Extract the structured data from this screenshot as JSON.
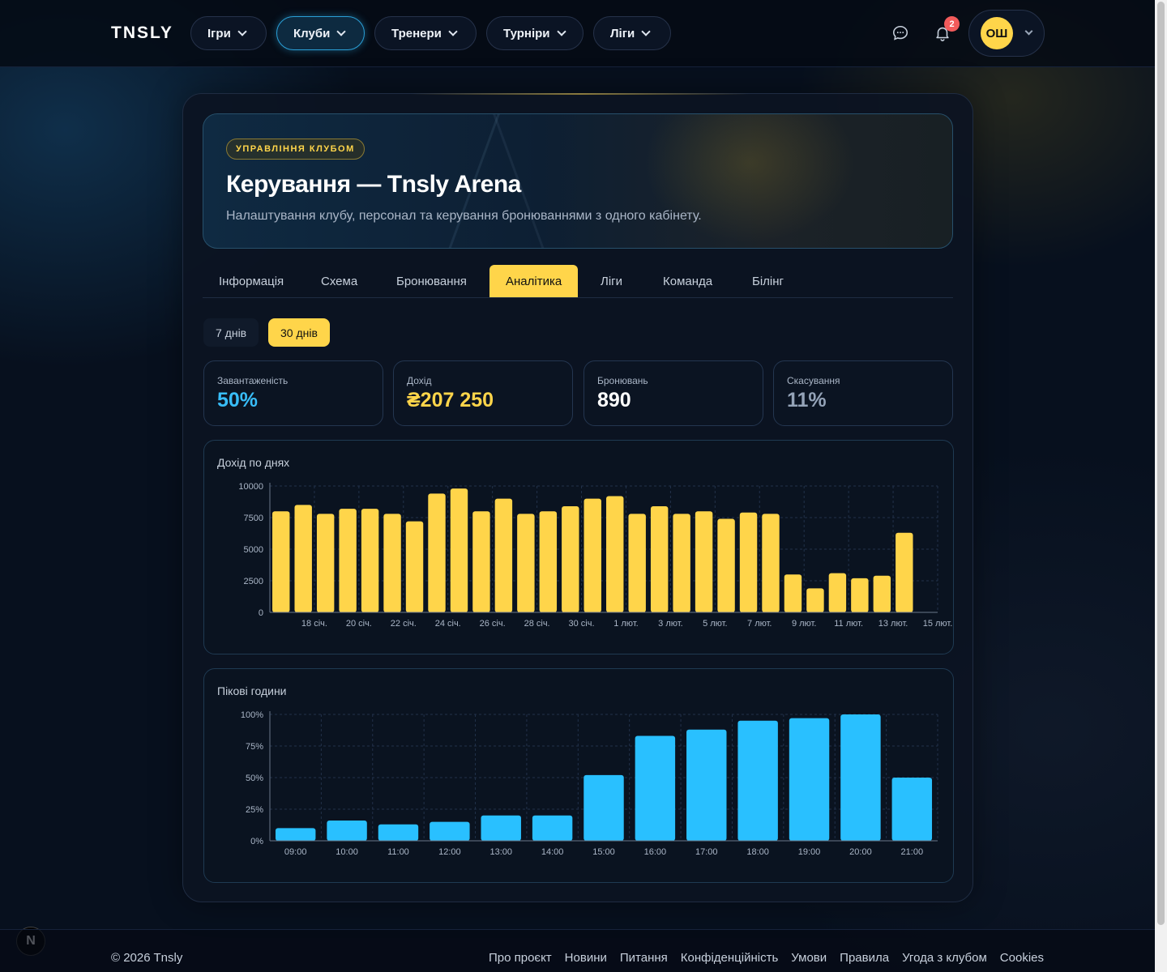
{
  "nav": {
    "logo": "TNSLY",
    "items": [
      {
        "label": "Ігри"
      },
      {
        "label": "Клуби"
      },
      {
        "label": "Тренери"
      },
      {
        "label": "Турніри"
      },
      {
        "label": "Ліги"
      }
    ],
    "active_index": 1,
    "notifications_count": "2",
    "user_initials": "ОШ"
  },
  "hero": {
    "badge": "УПРАВЛІННЯ КЛУБОМ",
    "title": "Керування — Tnsly Arena",
    "subtitle": "Налаштування клубу, персонал та керування бронюваннями з одного кабінету."
  },
  "tabs": [
    "Інформація",
    "Схема",
    "Бронювання",
    "Аналітика",
    "Ліги",
    "Команда",
    "Білінг"
  ],
  "active_tab": "Аналітика",
  "ranges": {
    "days7": "7 днів",
    "days30": "30 днів",
    "selected": "30 днів"
  },
  "stats": [
    {
      "label": "Завантаженість",
      "value": "50%",
      "color": "#38bdf8"
    },
    {
      "label": "Дохід",
      "value": "₴207 250",
      "color": "#ffd54a"
    },
    {
      "label": "Бронювань",
      "value": "890",
      "color": "#ffffff"
    },
    {
      "label": "Скасування",
      "value": "11%",
      "color": "#94a3b8"
    }
  ],
  "chart_data": [
    {
      "type": "bar",
      "title": "Дохід по днях",
      "ylim": [
        0,
        10000
      ],
      "yticks": [
        "0",
        "2500",
        "5000",
        "7500",
        "10000"
      ],
      "x_tick_labels": [
        "18 січ.",
        "20 січ.",
        "22 січ.",
        "24 січ.",
        "26 січ.",
        "28 січ.",
        "30 січ.",
        "1 лют.",
        "3 лют.",
        "5 лют.",
        "7 лют.",
        "9 лют.",
        "11 лют.",
        "13 лют.",
        "15 лют."
      ],
      "categories": [
        "17 січ.",
        "18 січ.",
        "19 січ.",
        "20 січ.",
        "21 січ.",
        "22 січ.",
        "23 січ.",
        "24 січ.",
        "25 січ.",
        "26 січ.",
        "27 січ.",
        "28 січ.",
        "29 січ.",
        "30 січ.",
        "31 січ.",
        "1 лют.",
        "2 лют.",
        "3 лют.",
        "4 лют.",
        "5 лют.",
        "6 лют.",
        "7 лют.",
        "8 лют.",
        "9 лют.",
        "10 лют.",
        "11 лют.",
        "12 лют.",
        "13 лют.",
        "14 лют.",
        "15 лют."
      ],
      "values": [
        8000,
        8500,
        7800,
        8200,
        8200,
        7800,
        7200,
        9400,
        9800,
        8000,
        9000,
        7800,
        8000,
        8400,
        9000,
        9200,
        7800,
        8400,
        7800,
        8000,
        7400,
        7900,
        7800,
        3000,
        1900,
        3100,
        2700,
        2900,
        6300,
        0
      ],
      "color": "#ffd54a",
      "grid": true
    },
    {
      "type": "bar",
      "title": "Пікові години",
      "ylim": [
        0,
        100
      ],
      "yticks": [
        "0%",
        "25%",
        "50%",
        "75%",
        "100%"
      ],
      "categories": [
        "09:00",
        "10:00",
        "11:00",
        "12:00",
        "13:00",
        "14:00",
        "15:00",
        "16:00",
        "17:00",
        "18:00",
        "19:00",
        "20:00",
        "21:00"
      ],
      "values": [
        10,
        16,
        13,
        15,
        20,
        20,
        52,
        83,
        88,
        95,
        97,
        100,
        50
      ],
      "color": "#29c0ff",
      "grid": true
    }
  ],
  "footer": {
    "copyright": "© 2026 Tnsly",
    "links": [
      "Про проєкт",
      "Новини",
      "Питання",
      "Конфіденційність",
      "Умови",
      "Правила",
      "Угода з клубом",
      "Cookies"
    ]
  }
}
